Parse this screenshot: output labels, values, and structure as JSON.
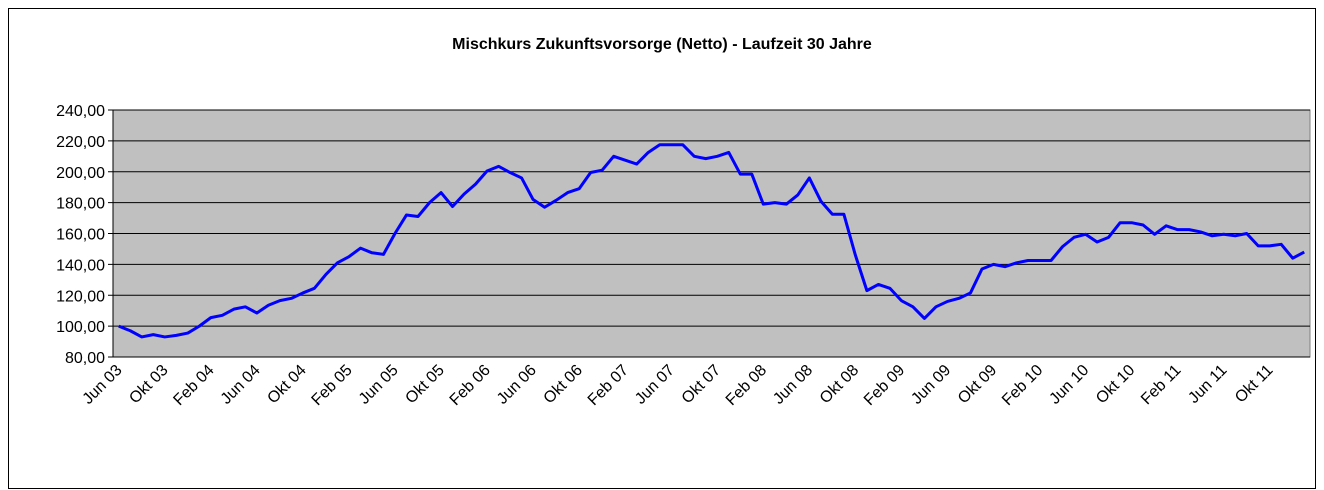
{
  "chart_data": {
    "type": "line",
    "title": "Mischkurs Zukunftsvorsorge (Netto) - Laufzeit 30 Jahre",
    "categories": [
      "Jun 03",
      null,
      null,
      null,
      "Okt 03",
      null,
      null,
      null,
      "Feb 04",
      null,
      null,
      null,
      "Jun 04",
      null,
      null,
      null,
      "Okt 04",
      null,
      null,
      null,
      "Feb 05",
      null,
      null,
      null,
      "Jun 05",
      null,
      null,
      null,
      "Okt 05",
      null,
      null,
      null,
      "Feb 06",
      null,
      null,
      null,
      "Jun 06",
      null,
      null,
      null,
      "Okt 06",
      null,
      null,
      null,
      "Feb 07",
      null,
      null,
      null,
      "Jun 07",
      null,
      null,
      null,
      "Okt 07",
      null,
      null,
      null,
      "Feb 08",
      null,
      null,
      null,
      "Jun 08",
      null,
      null,
      null,
      "Okt 08",
      null,
      null,
      null,
      "Feb 09",
      null,
      null,
      null,
      "Jun 09",
      null,
      null,
      null,
      "Okt 09",
      null,
      null,
      null,
      "Feb 10",
      null,
      null,
      null,
      "Jun 10",
      null,
      null,
      null,
      "Okt 10",
      null,
      null,
      null,
      "Feb 11",
      null,
      null,
      null,
      "Jun 11",
      null,
      null,
      null,
      "Okt 11",
      null,
      null,
      null
    ],
    "series": [
      {
        "color": "#0000ff",
        "values": [
          100,
          97,
          93,
          94.5,
          93,
          94,
          95.5,
          100,
          105.5,
          107,
          111,
          112.5,
          108.5,
          113.5,
          116.5,
          118,
          121.5,
          124.5,
          133.5,
          141,
          145,
          150.5,
          147.5,
          146.5,
          160,
          172,
          171,
          180,
          186.5,
          177.5,
          185.5,
          192,
          200.5,
          203.5,
          199.5,
          196,
          182,
          177,
          181.5,
          186.5,
          189,
          199.5,
          201,
          210,
          207.5,
          205,
          212.5,
          217.5,
          217.5,
          217.5,
          210,
          208.5,
          210,
          212.5,
          198.5,
          198.5,
          179,
          180,
          179,
          185,
          196,
          181,
          172.5,
          172.5,
          146,
          123,
          127,
          124.5,
          116.5,
          112.5,
          105,
          112.5,
          116,
          118,
          121.5,
          137,
          140,
          138.5,
          141,
          142.5,
          142.5,
          142.5,
          151.5,
          157.5,
          159.5,
          154.5,
          157.5,
          167,
          167,
          165.5,
          159.5,
          165,
          162.5,
          162.5,
          161,
          158.5,
          159.5,
          158.5,
          160,
          152,
          152,
          153,
          144,
          148
        ]
      }
    ],
    "ylim": [
      80,
      240
    ],
    "yticks": [
      {
        "value": 80,
        "label": "80,00"
      },
      {
        "value": 100,
        "label": "100,00"
      },
      {
        "value": 120,
        "label": "120,00"
      },
      {
        "value": 140,
        "label": "140,00"
      },
      {
        "value": 160,
        "label": "160,00"
      },
      {
        "value": 180,
        "label": "180,00"
      },
      {
        "value": 200,
        "label": "200,00"
      },
      {
        "value": 220,
        "label": "220,00"
      },
      {
        "value": 240,
        "label": "240,00"
      }
    ],
    "grid": true
  }
}
